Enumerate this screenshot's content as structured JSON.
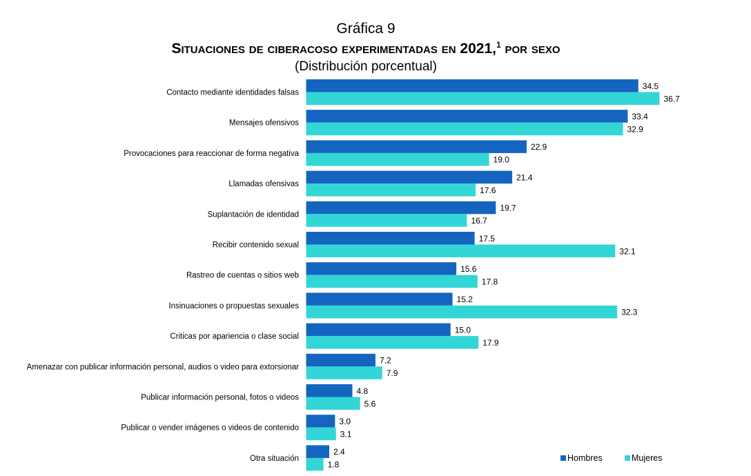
{
  "title_pre": "Gráfica 9",
  "title_main": "Situaciones de ciberacoso experimentadas en",
  "title_year": "2021,",
  "title_note": "1",
  "title_post": "por sexo",
  "subtitle": "(Distribución porcentual)",
  "colors": {
    "hombres": "#1565C0",
    "mujeres": "#33D6D6"
  },
  "chart_data": {
    "type": "bar",
    "orientation": "horizontal",
    "categories": [
      "Contacto mediante identidades falsas",
      "Mensajes ofensivos",
      "Provocaciones para reaccionar de forma negativa",
      "Llamadas ofensivas",
      "Suplantación de identidad",
      "Recibir contenido sexual",
      "Rastreo de cuentas o sitios web",
      "Insinuaciones o propuestas sexuales",
      "Criticas por apariencia o clase social",
      "Amenazar con publicar información personal, audios o video para extorsionar",
      "Publicar información personal, fotos o videos",
      "Publicar o vender imágenes o videos de contenido",
      "Otra situación"
    ],
    "series": [
      {
        "name": "Hombres",
        "values": [
          34.5,
          33.4,
          22.9,
          21.4,
          19.7,
          17.5,
          15.6,
          15.2,
          15.0,
          7.2,
          4.8,
          3.0,
          2.4
        ]
      },
      {
        "name": "Mujeres",
        "values": [
          36.7,
          32.9,
          19.0,
          17.6,
          16.7,
          32.1,
          17.8,
          32.3,
          17.9,
          7.9,
          5.6,
          3.1,
          1.8
        ]
      }
    ],
    "value_labels": [
      [
        "34.5",
        "33.4",
        "22.9",
        "21.4",
        "19.7",
        "17.5",
        "15.6",
        "15.2",
        "15.0",
        "7.2",
        "4.8",
        "3.0",
        "2.4"
      ],
      [
        "36.7",
        "32.9",
        "19.0",
        "17.6",
        "16.7",
        "32.1",
        "17.8",
        "32.3",
        "17.9",
        "7.9",
        "5.6",
        "3.1",
        "1.8"
      ]
    ],
    "legend_position": "bottom-right",
    "grid": false
  }
}
